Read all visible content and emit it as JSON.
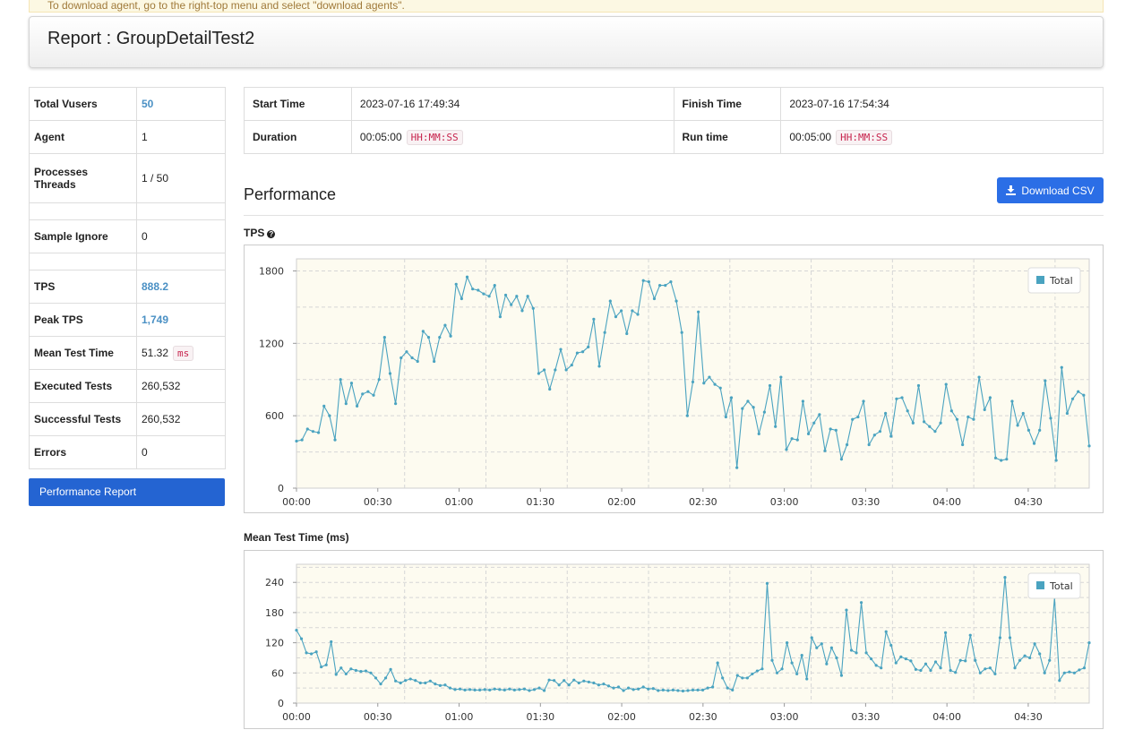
{
  "notice": "To download agent, go to the right-top menu and select \"download agents\".",
  "header": {
    "title": "Report : GroupDetailTest2"
  },
  "summary": {
    "total_vusers_label": "Total Vusers",
    "total_vusers": "50",
    "agent_label": "Agent",
    "agent": "1",
    "processes_label": "Processes",
    "threads_label": "Threads",
    "processes_threads": "1 / 50",
    "sample_ignore_label": "Sample Ignore",
    "sample_ignore": "0",
    "tps_label": "TPS",
    "tps": "888.2",
    "peak_tps_label": "Peak TPS",
    "peak_tps": "1,749",
    "mean_test_time_label": "Mean Test Time",
    "mean_test_time": "51.32",
    "mean_test_time_unit": "ms",
    "executed_tests_label": "Executed Tests",
    "executed_tests": "260,532",
    "successful_tests_label": "Successful Tests",
    "successful_tests": "260,532",
    "errors_label": "Errors",
    "errors": "0"
  },
  "nav": {
    "performance_report": "Performance Report"
  },
  "times": {
    "start_time_label": "Start Time",
    "start_time": "2023-07-16 17:49:34",
    "finish_time_label": "Finish Time",
    "finish_time": "2023-07-16 17:54:34",
    "duration_label": "Duration",
    "duration": "00:05:00",
    "duration_format": "HH:MM:SS",
    "run_time_label": "Run time",
    "run_time": "00:05:00",
    "run_time_format": "HH:MM:SS"
  },
  "performance": {
    "title": "Performance",
    "download_csv": "Download CSV"
  },
  "chart_data": [
    {
      "type": "line",
      "title": "TPS",
      "legend": "top-right",
      "series": [
        {
          "name": "Total",
          "color": "#4aa3c0",
          "values": [
            390,
            400,
            490,
            470,
            460,
            680,
            600,
            400,
            900,
            700,
            870,
            680,
            780,
            800,
            770,
            900,
            1250,
            950,
            700,
            1080,
            1130,
            1080,
            1050,
            1300,
            1250,
            1050,
            1250,
            1350,
            1260,
            1690,
            1570,
            1750,
            1650,
            1640,
            1610,
            1590,
            1680,
            1420,
            1600,
            1520,
            1590,
            1470,
            1590,
            1490,
            950,
            980,
            820,
            980,
            1150,
            980,
            1020,
            1120,
            1130,
            1170,
            1400,
            1010,
            1290,
            1550,
            1420,
            1470,
            1280,
            1470,
            1440,
            1720,
            1710,
            1570,
            1680,
            1680,
            1710,
            1550,
            1290,
            600,
            880,
            1460,
            870,
            920,
            860,
            830,
            590,
            750,
            170,
            660,
            720,
            670,
            450,
            630,
            850,
            510,
            920,
            320,
            410,
            400,
            720,
            450,
            540,
            610,
            310,
            490,
            480,
            240,
            360,
            570,
            590,
            720,
            360,
            440,
            470,
            620,
            430,
            740,
            750,
            640,
            540,
            850,
            550,
            510,
            470,
            540,
            860,
            640,
            570,
            360,
            590,
            570,
            920,
            650,
            750,
            250,
            230,
            240,
            720,
            520,
            620,
            480,
            370,
            480,
            890,
            580,
            230,
            1000,
            620,
            740,
            800,
            770,
            350
          ]
        }
      ],
      "x_labels": [
        "00:00",
        "00:30",
        "01:00",
        "01:30",
        "02:00",
        "02:30",
        "03:00",
        "03:30",
        "04:00",
        "04:30"
      ],
      "y_ticks": [
        0,
        600,
        1200,
        1800
      ],
      "ylim": [
        0,
        1900
      ]
    },
    {
      "type": "line",
      "title": "Mean Test Time (ms)",
      "legend": "top-right",
      "series": [
        {
          "name": "Total",
          "color": "#4aa3c0",
          "values": [
            145,
            128,
            100,
            98,
            102,
            72,
            76,
            122,
            57,
            70,
            58,
            68,
            65,
            63,
            64,
            60,
            50,
            38,
            50,
            67,
            44,
            40,
            45,
            48,
            45,
            40,
            40,
            44,
            38,
            35,
            36,
            30,
            27,
            28,
            26,
            27,
            26,
            26,
            27,
            26,
            28,
            27,
            26,
            28,
            26,
            27,
            28,
            25,
            27,
            30,
            25,
            46,
            45,
            36,
            45,
            36,
            46,
            40,
            44,
            42,
            40,
            36,
            38,
            34,
            30,
            32,
            25,
            30,
            27,
            28,
            32,
            28,
            29,
            25,
            26,
            25,
            26,
            25,
            24,
            25,
            26,
            26,
            26,
            30,
            32,
            80,
            50,
            30,
            26,
            55,
            50,
            50,
            58,
            64,
            68,
            238,
            85,
            60,
            68,
            120,
            80,
            58,
            95,
            48,
            130,
            110,
            118,
            78,
            110,
            90,
            55,
            185,
            105,
            100,
            200,
            100,
            88,
            75,
            70,
            142,
            115,
            80,
            92,
            88,
            84,
            67,
            65,
            78,
            65,
            82,
            70,
            140,
            65,
            61,
            85,
            84,
            135,
            85,
            60,
            68,
            70,
            58,
            130,
            250,
            130,
            70,
            85,
            94,
            90,
            118,
            98,
            60,
            85,
            210,
            45,
            60,
            62,
            60,
            66,
            70,
            120
          ]
        }
      ],
      "x_labels": [
        "00:00",
        "00:30",
        "01:00",
        "01:30",
        "02:00",
        "02:30",
        "03:00",
        "03:30",
        "04:00",
        "04:30"
      ],
      "y_ticks": [
        0,
        60,
        120,
        180,
        240
      ],
      "ylim": [
        0,
        276
      ]
    }
  ]
}
